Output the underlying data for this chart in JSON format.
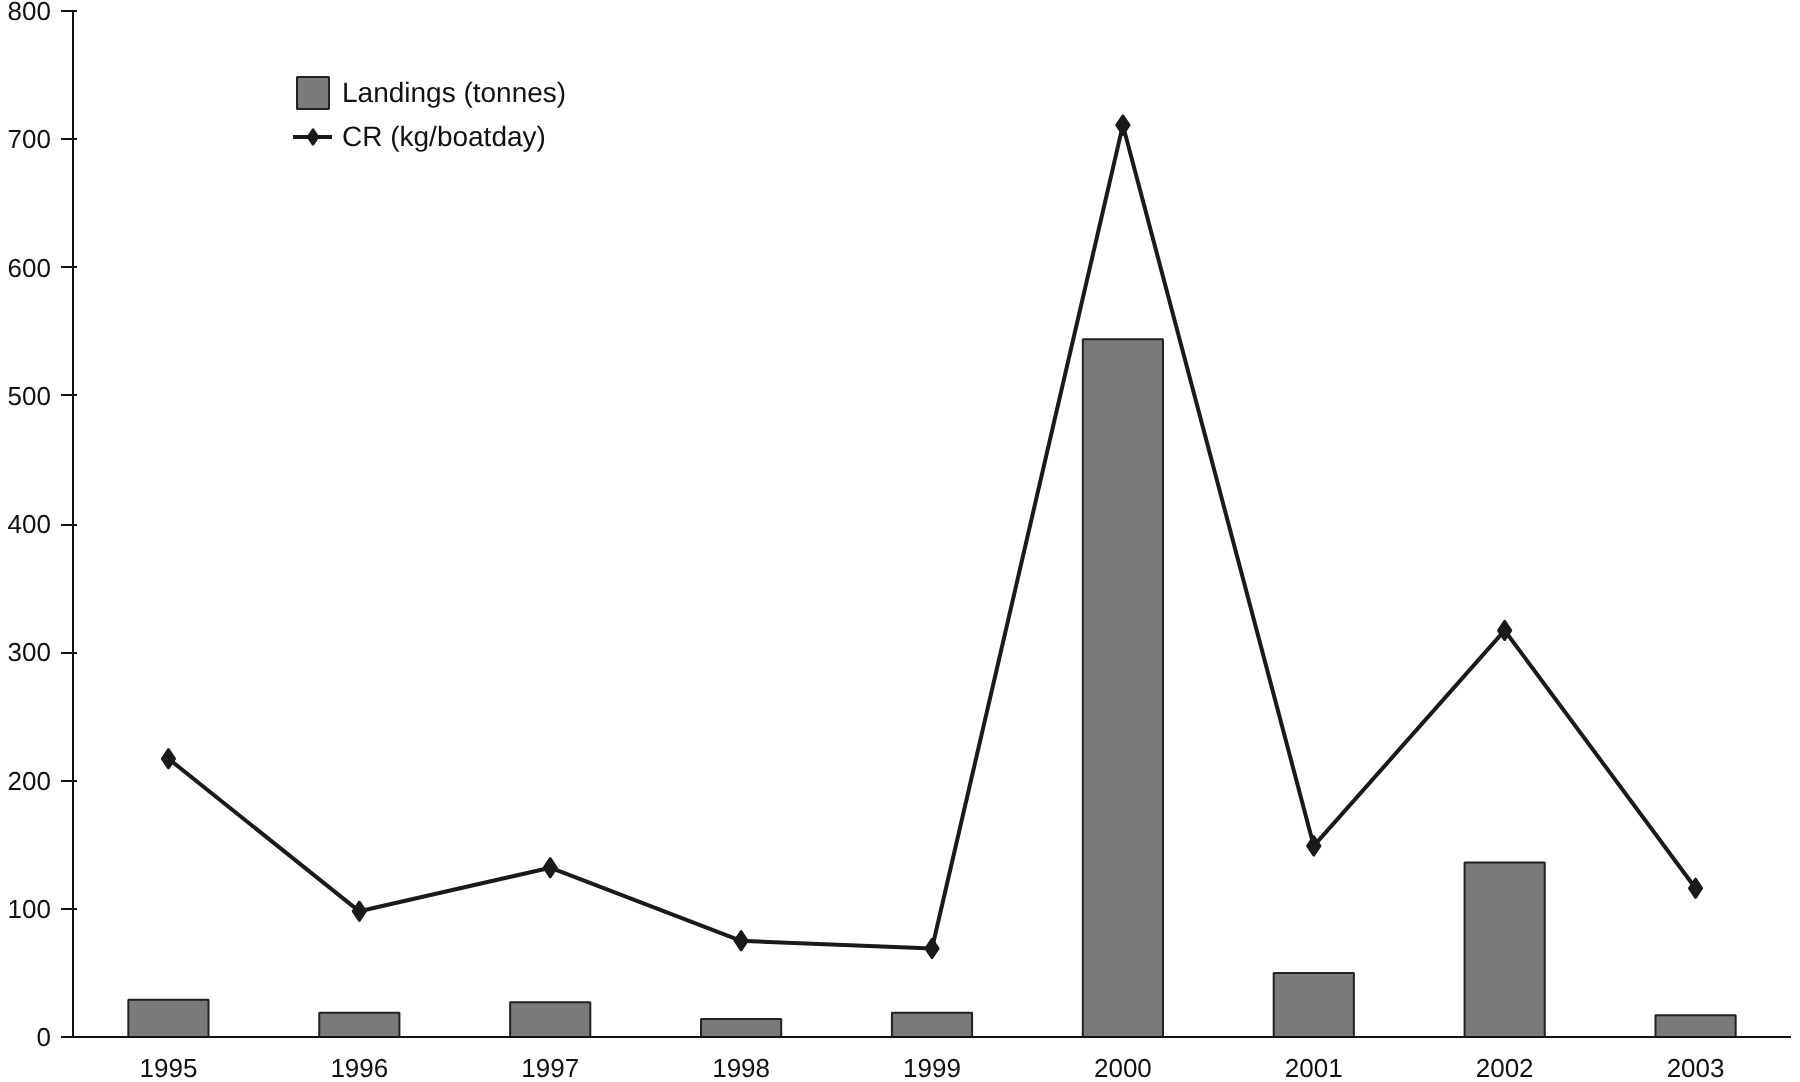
{
  "chart_data": {
    "type": "bar",
    "categories": [
      "1995",
      "1996",
      "1997",
      "1998",
      "1999",
      "2000",
      "2001",
      "2002",
      "2003"
    ],
    "series": [
      {
        "name": "Landings (tonnes)",
        "color": "#7a7a7a",
        "values": [
          29,
          19,
          27,
          14,
          19,
          544,
          50,
          136,
          17
        ]
      },
      {
        "name": "CR (kg/boatday)",
        "type": "line",
        "color": "#1a1a1a",
        "marker": "diamond",
        "values": [
          217,
          98,
          132,
          75,
          69,
          711,
          149,
          317,
          116
        ]
      }
    ],
    "ylim": [
      0,
      800
    ],
    "yticks": [
      0,
      100,
      200,
      300,
      400,
      500,
      600,
      700,
      800
    ],
    "grid": false,
    "legend": "top left"
  }
}
